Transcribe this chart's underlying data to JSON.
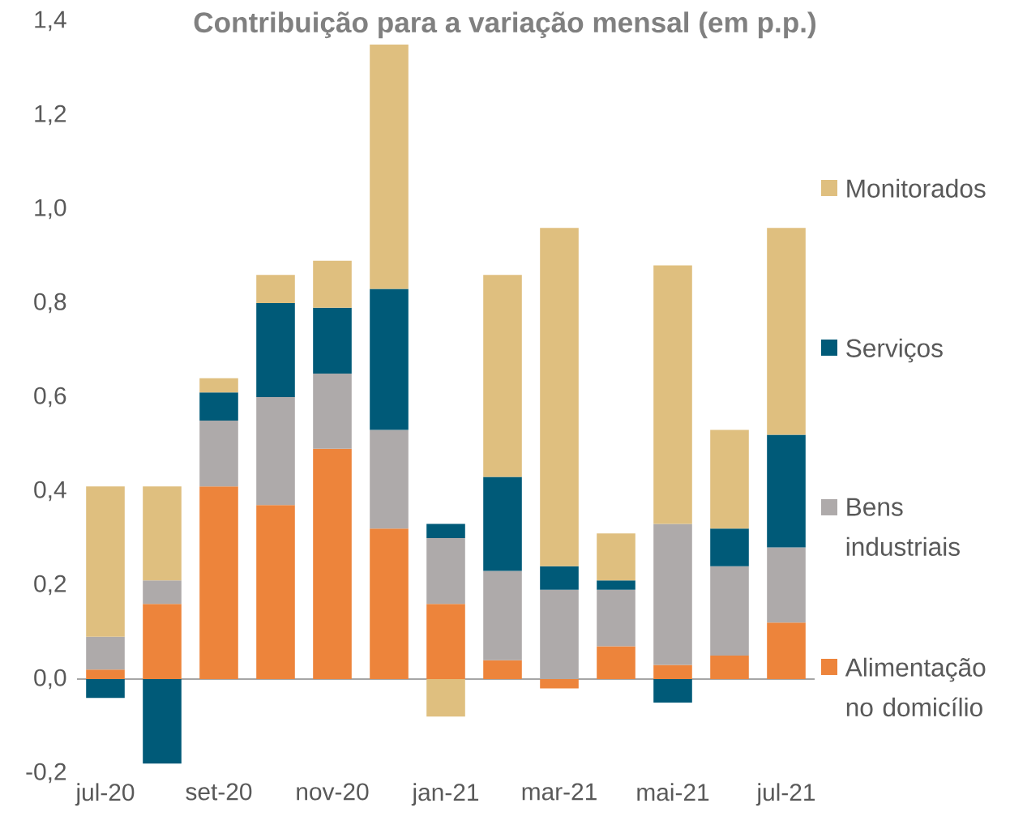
{
  "chart_data": {
    "type": "bar",
    "stacked": true,
    "title": "Contribuição para a variação mensal (em p.p.)",
    "categories": [
      "jul-20",
      null,
      "set-20",
      null,
      "nov-20",
      null,
      "jan-21",
      null,
      "mar-21",
      null,
      "mai-21",
      null,
      "jul-21"
    ],
    "series": [
      {
        "name": "Alimentação no domicílio",
        "color": "#ed843b",
        "values": [
          0.02,
          0.16,
          0.41,
          0.37,
          0.49,
          0.32,
          0.16,
          0.04,
          -0.02,
          0.07,
          0.03,
          0.05,
          0.12
        ]
      },
      {
        "name": "Bens industriais",
        "color": "#aeaaaa",
        "values": [
          0.07,
          0.05,
          0.14,
          0.23,
          0.16,
          0.21,
          0.14,
          0.19,
          0.19,
          0.12,
          0.3,
          0.19,
          0.16
        ]
      },
      {
        "name": "Serviços",
        "color": "#005a78",
        "values": [
          -0.04,
          -0.18,
          0.06,
          0.2,
          0.14,
          0.3,
          0.03,
          0.2,
          0.05,
          0.02,
          -0.05,
          0.08,
          0.24
        ]
      },
      {
        "name": "Monitorados",
        "color": "#dfbf7f",
        "values": [
          0.32,
          0.2,
          0.03,
          0.06,
          0.1,
          0.52,
          -0.08,
          0.43,
          0.72,
          0.1,
          0.55,
          0.21,
          0.44
        ]
      }
    ],
    "ylim": [
      -0.2,
      1.4
    ],
    "yticks": [
      {
        "value": -0.2,
        "label": "-0,2"
      },
      {
        "value": 0,
        "label": "0,0"
      },
      {
        "value": 0.2,
        "label": "0,2"
      },
      {
        "value": 0.4,
        "label": "0,4"
      },
      {
        "value": 0.6,
        "label": "0,6"
      },
      {
        "value": 0.8,
        "label": "0,8"
      },
      {
        "value": 1.0,
        "label": "1,0"
      },
      {
        "value": 1.2,
        "label": "1,2"
      },
      {
        "value": 1.4,
        "label": "1,4"
      }
    ],
    "legend": "right"
  }
}
